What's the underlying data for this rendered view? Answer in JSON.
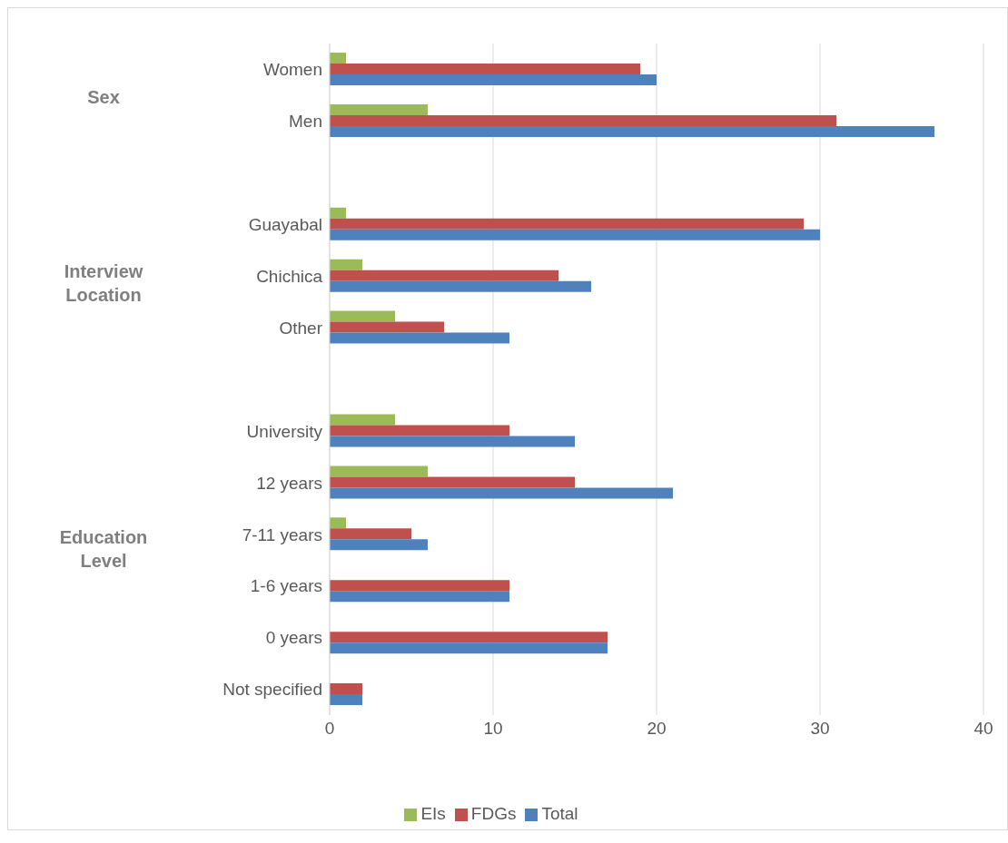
{
  "chart_data": {
    "type": "bar",
    "orientation": "horizontal",
    "categories": [
      "Women",
      "Men",
      null,
      "Guayabal",
      "Chichica",
      "Other",
      null,
      "University",
      "12 years",
      "7-11 years",
      "1-6 years",
      "0 years",
      "Not specified"
    ],
    "series": [
      {
        "name": "EIs",
        "color": "#9bbb59",
        "values": [
          1,
          6,
          null,
          1,
          2,
          4,
          null,
          4,
          6,
          1,
          0,
          0,
          0
        ]
      },
      {
        "name": "FDGs",
        "color": "#c0504d",
        "values": [
          19,
          31,
          null,
          29,
          14,
          7,
          null,
          11,
          15,
          5,
          11,
          17,
          2
        ]
      },
      {
        "name": "Total",
        "color": "#4f81bd",
        "values": [
          20,
          37,
          null,
          30,
          16,
          11,
          null,
          15,
          21,
          6,
          11,
          17,
          2
        ]
      }
    ],
    "annotations": [
      "Sex",
      "Interview\nLocation",
      "Education\nLevel"
    ],
    "xlim": [
      0,
      40
    ],
    "xticks": [
      0,
      10,
      20,
      30,
      40
    ],
    "grid": "x",
    "legend": "bottom"
  }
}
